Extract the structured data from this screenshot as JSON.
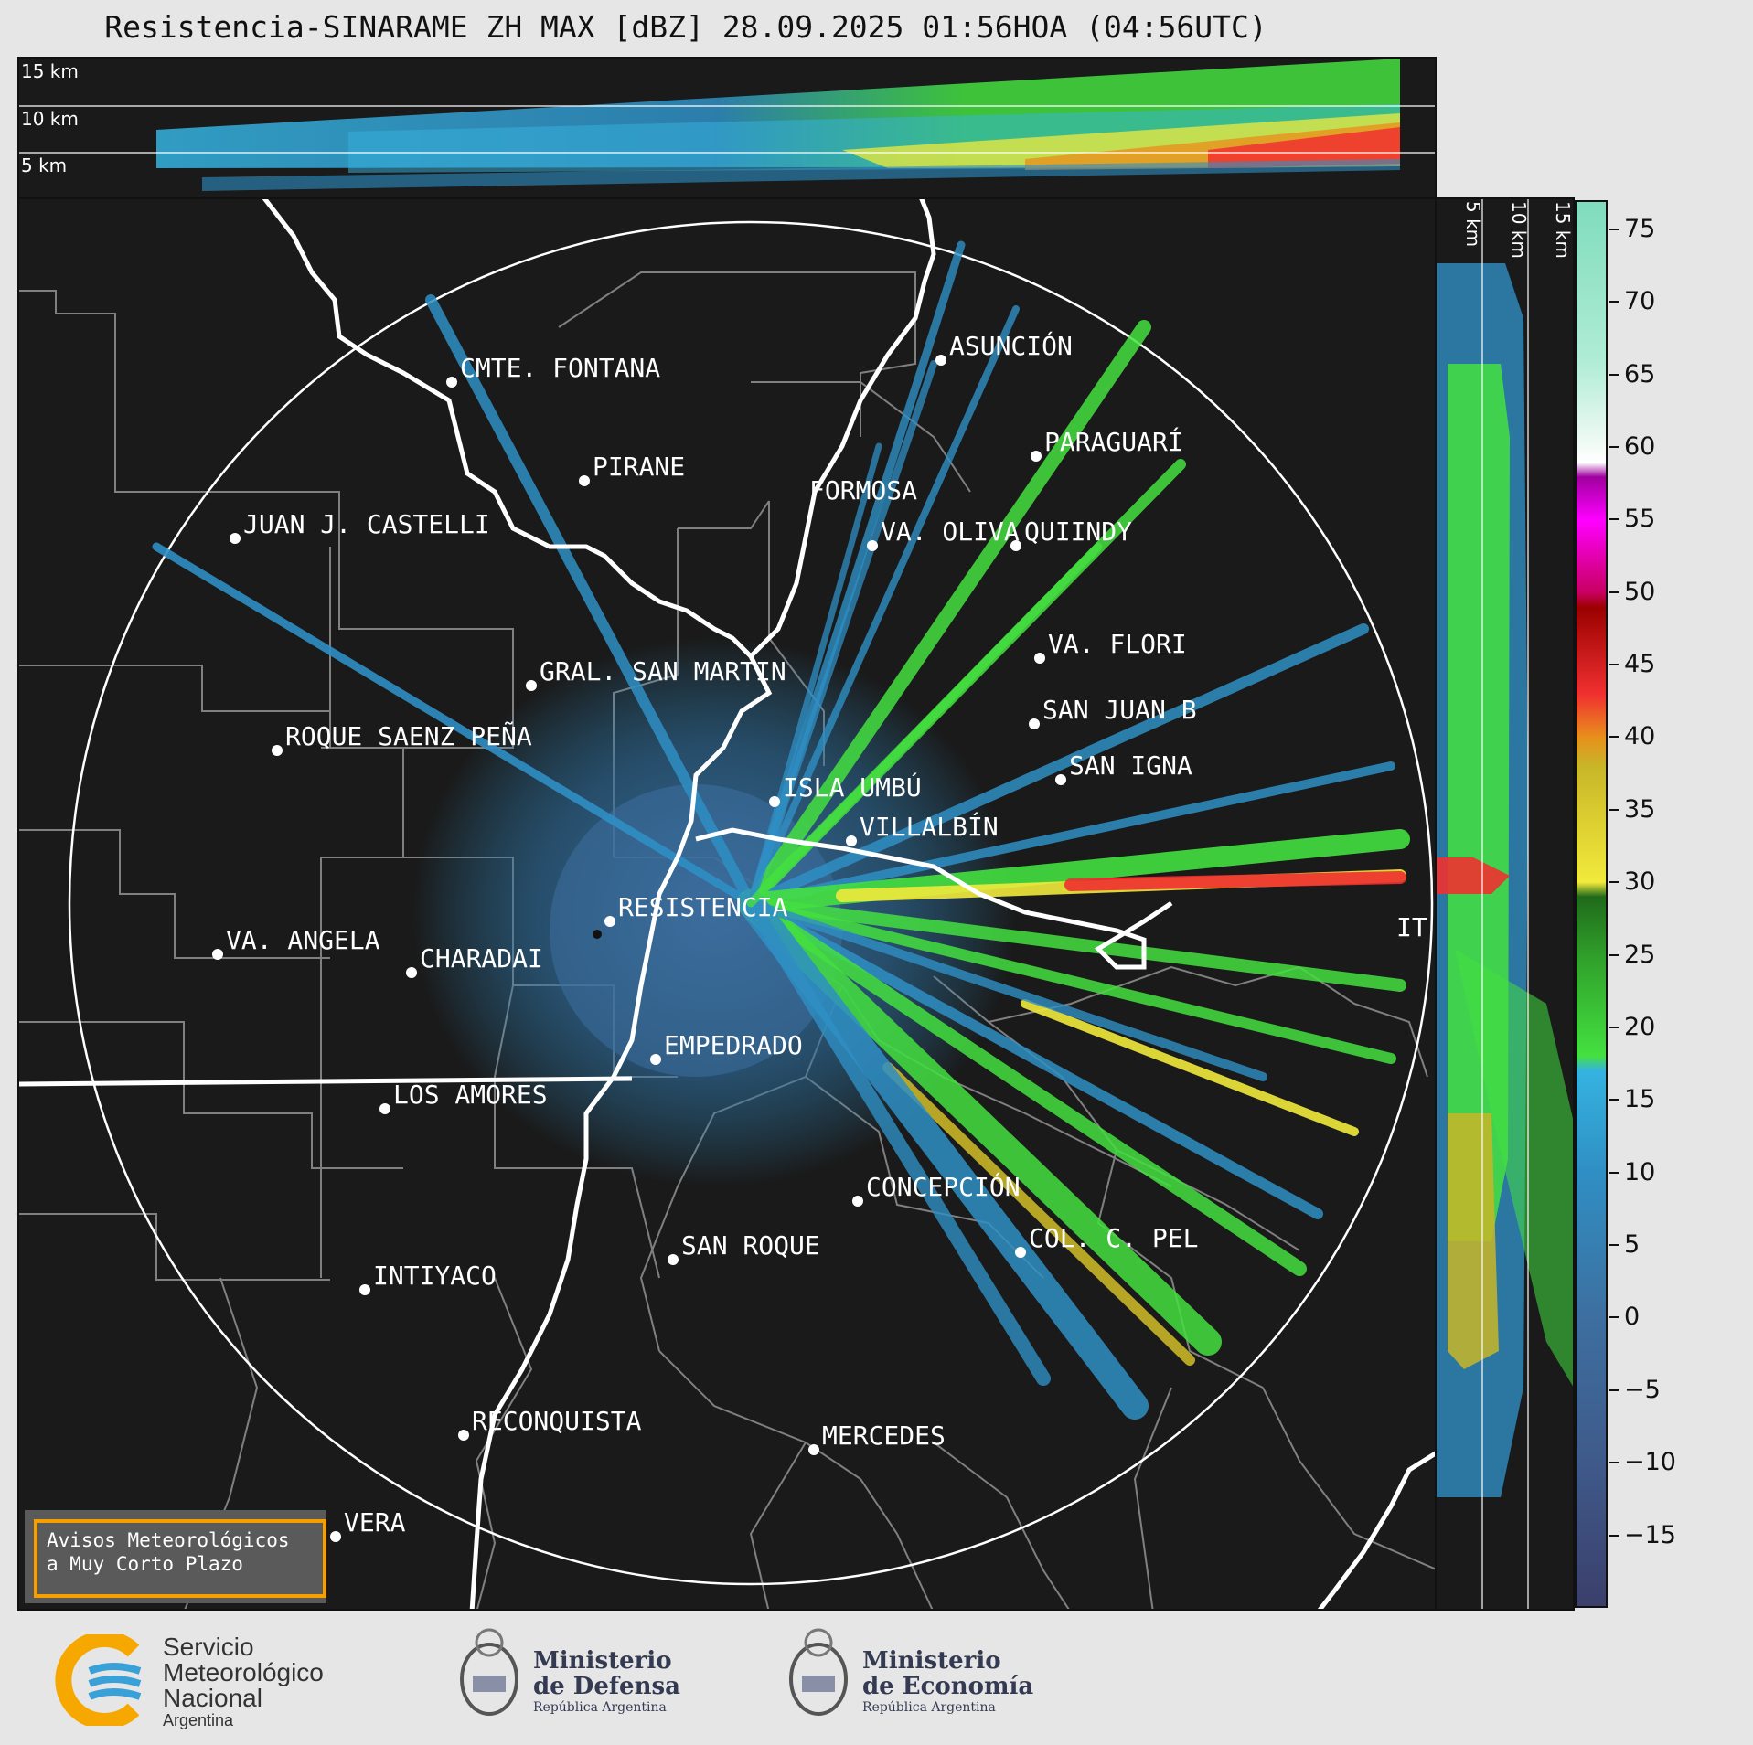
{
  "title": "Resistencia-SINARAME ZH MAX [dBZ] 28.09.2025 01:56HOA (04:56UTC)",
  "top_panel": {
    "alt_labels": [
      "15 km",
      "10 km",
      "5 km"
    ]
  },
  "side_panel": {
    "alt_labels": [
      "5 km",
      "10 km",
      "15 km"
    ]
  },
  "cities": [
    {
      "name": "CMTE. FONTANA"
    },
    {
      "name": "ASUNCIÓN"
    },
    {
      "name": "PARAGUARÍ"
    },
    {
      "name": "PIRANE"
    },
    {
      "name": "JUAN J. CASTELLI"
    },
    {
      "name": "VA. OLIVA"
    },
    {
      "name": "QUIINDY"
    },
    {
      "name": "FORMOSA"
    },
    {
      "name": "VA. FLORI"
    },
    {
      "name": "GRAL. SAN MARTIN"
    },
    {
      "name": "SAN JUAN B"
    },
    {
      "name": "ROQUE SAENZ PEÑA"
    },
    {
      "name": "SAN IGNA"
    },
    {
      "name": "ISLA UMBÚ"
    },
    {
      "name": "VILLALBÍN"
    },
    {
      "name": "RESISTENCIA"
    },
    {
      "name": "VA. ANGELA"
    },
    {
      "name": "CHARADAI"
    },
    {
      "name": "IT"
    },
    {
      "name": "EMPEDRADO"
    },
    {
      "name": "LOS AMORES"
    },
    {
      "name": "CONCEPCIÓN"
    },
    {
      "name": "COL. C. PEL"
    },
    {
      "name": "SAN ROQUE"
    },
    {
      "name": "INTIYACO"
    },
    {
      "name": "RECONQUISTA"
    },
    {
      "name": "MERCEDES"
    },
    {
      "name": "VERA"
    }
  ],
  "colorbar": {
    "unit": "dBZ",
    "ticks": [
      "75",
      "70",
      "65",
      "60",
      "55",
      "50",
      "45",
      "40",
      "35",
      "30",
      "25",
      "20",
      "15",
      "10",
      "5",
      "0",
      "−5",
      "−10",
      "−15"
    ],
    "stops": [
      {
        "v": -20,
        "color": "#3b3f6b"
      },
      {
        "v": -10,
        "color": "#3f5a8a"
      },
      {
        "v": 0,
        "color": "#3d6fa0"
      },
      {
        "v": 10,
        "color": "#2f8fc4"
      },
      {
        "v": 17,
        "color": "#35b3e0"
      },
      {
        "v": 18,
        "color": "#44e040"
      },
      {
        "v": 25,
        "color": "#2f9e2a"
      },
      {
        "v": 29,
        "color": "#1f6a1a"
      },
      {
        "v": 30,
        "color": "#f2ea3c"
      },
      {
        "v": 38,
        "color": "#c8b628"
      },
      {
        "v": 40,
        "color": "#e8901c"
      },
      {
        "v": 43,
        "color": "#f03030"
      },
      {
        "v": 49,
        "color": "#9a0000"
      },
      {
        "v": 50,
        "color": "#c80060"
      },
      {
        "v": 55,
        "color": "#ff00ff"
      },
      {
        "v": 58,
        "color": "#a000a0"
      },
      {
        "v": 59,
        "color": "#ffffff"
      },
      {
        "v": 61,
        "color": "#e8f8f0"
      },
      {
        "v": 66,
        "color": "#b0ecd6"
      },
      {
        "v": 77,
        "color": "#7fdcbc"
      }
    ]
  },
  "notice": {
    "line1": "Avisos Meteorológicos",
    "line2": "a Muy Corto Plazo"
  },
  "logos": {
    "smn": {
      "l1": "Servicio",
      "l2": "Meteorológico",
      "l3": "Nacional",
      "l4": "Argentina"
    },
    "defensa": {
      "l1": "Ministerio",
      "l2": "de Defensa",
      "l3": "República Argentina"
    },
    "economia": {
      "l1": "Ministerio",
      "l2": "de Economía",
      "l3": "República Argentina"
    }
  }
}
